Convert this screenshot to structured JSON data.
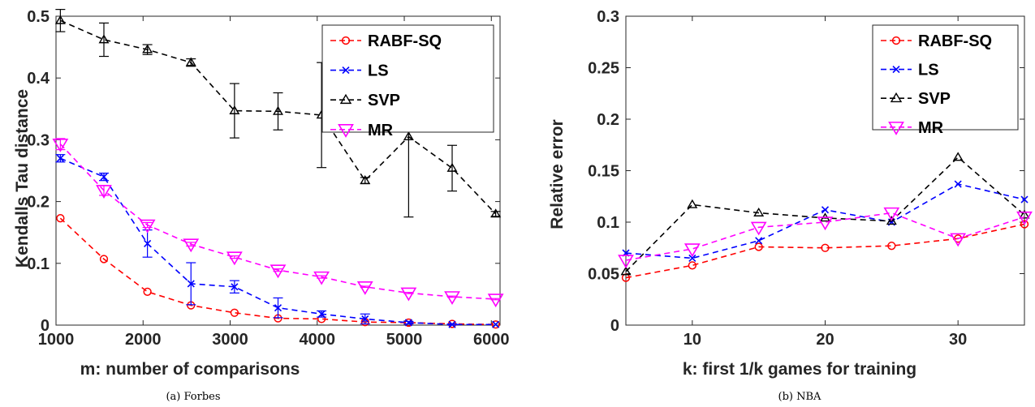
{
  "chart_data": [
    {
      "type": "line",
      "xlabel": "m: number of comparisons",
      "ylabel": "Kendalls Tau distance",
      "caption": "(a) Forbes",
      "xlim": [
        1000,
        6100
      ],
      "ylim": [
        0,
        0.5
      ],
      "xticks": [
        "1000",
        "2000",
        "3000",
        "4000",
        "5000",
        "6000"
      ],
      "yticks": [
        "0",
        "0.1",
        "0.2",
        "0.3",
        "0.4",
        "0.5"
      ],
      "legend_position": "top-right",
      "grid": false,
      "x": [
        1050,
        1550,
        2050,
        2550,
        3050,
        3550,
        4050,
        4550,
        5050,
        5550,
        6050
      ],
      "series": [
        {
          "name": "RABF-SQ",
          "color": "#ff0000",
          "marker": "circle",
          "values": [
            0.173,
            0.107,
            0.054,
            0.032,
            0.02,
            0.011,
            0.01,
            0.005,
            0.004,
            0.002,
            0.001
          ],
          "errors": [
            0,
            0,
            0,
            0,
            0,
            0,
            0,
            0,
            0,
            0,
            0
          ]
        },
        {
          "name": "LS",
          "color": "#0000ff",
          "marker": "x",
          "values": [
            0.27,
            0.24,
            0.132,
            0.067,
            0.062,
            0.028,
            0.018,
            0.01,
            0.004,
            0.001,
            0.001
          ],
          "errors": [
            0.006,
            0.006,
            0.022,
            0.034,
            0.01,
            0.016,
            0.005,
            0.008,
            0.002,
            0.001,
            0
          ]
        },
        {
          "name": "SVP",
          "color": "#000000",
          "marker": "triangle-up",
          "values": [
            0.493,
            0.462,
            0.446,
            0.425,
            0.347,
            0.346,
            0.34,
            0.234,
            0.305,
            0.254,
            0.18
          ],
          "errors": [
            0.018,
            0.027,
            0.008,
            0.006,
            0.044,
            0.03,
            0.085,
            0.005,
            0.13,
            0.037,
            0.004
          ]
        },
        {
          "name": "MR",
          "color": "#ff00ff",
          "marker": "triangle-down",
          "values": [
            0.293,
            0.218,
            0.162,
            0.131,
            0.11,
            0.089,
            0.078,
            0.062,
            0.052,
            0.046,
            0.042
          ],
          "errors": [
            0.009,
            0.008,
            0.004,
            0.003,
            0.002,
            0.002,
            0.002,
            0.001,
            0.001,
            0.001,
            0.001
          ]
        }
      ]
    },
    {
      "type": "line",
      "xlabel": "k: first 1/k games for training",
      "ylabel": "Relative error",
      "caption": "(b) NBA",
      "xlim": [
        5,
        35
      ],
      "ylim": [
        0,
        0.3
      ],
      "xticks": [
        "10",
        "20",
        "30"
      ],
      "yticks": [
        "0",
        "0.05",
        "0.1",
        "0.15",
        "0.2",
        "0.25",
        "0.3"
      ],
      "legend_position": "top-right",
      "grid": false,
      "x": [
        5,
        10,
        15,
        20,
        25,
        30,
        35
      ],
      "series": [
        {
          "name": "RABF-SQ",
          "color": "#ff0000",
          "marker": "circle",
          "values": [
            0.046,
            0.058,
            0.076,
            0.075,
            0.077,
            0.084,
            0.098
          ]
        },
        {
          "name": "LS",
          "color": "#0000ff",
          "marker": "x",
          "values": [
            0.07,
            0.065,
            0.082,
            0.112,
            0.1,
            0.137,
            0.122
          ]
        },
        {
          "name": "SVP",
          "color": "#000000",
          "marker": "triangle-up",
          "values": [
            0.052,
            0.117,
            0.109,
            0.104,
            0.101,
            0.163,
            0.107
          ]
        },
        {
          "name": "MR",
          "color": "#ff00ff",
          "marker": "triangle-down",
          "values": [
            0.063,
            0.074,
            0.095,
            0.1,
            0.109,
            0.084,
            0.105
          ]
        }
      ]
    }
  ]
}
